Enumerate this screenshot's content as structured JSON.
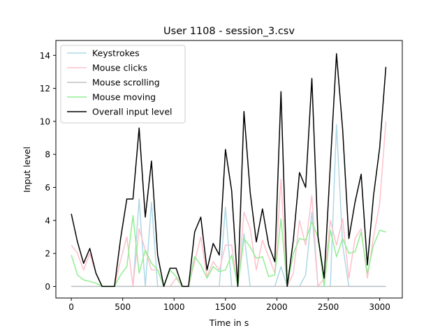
{
  "chart_data": {
    "type": "line",
    "title": "User 1108 - session_3.csv",
    "xlabel": "Time in s",
    "ylabel": "Input level",
    "xlim": [
      -150,
      3220
    ],
    "ylim": [
      -0.7,
      14.9
    ],
    "xticks": [
      0,
      500,
      1000,
      1500,
      2000,
      2500,
      3000
    ],
    "yticks": [
      0,
      2,
      4,
      6,
      8,
      10,
      12,
      14
    ],
    "grid": false,
    "legend_position": "top-left",
    "x": [
      0,
      60,
      120,
      180,
      240,
      300,
      360,
      420,
      480,
      540,
      600,
      660,
      720,
      780,
      840,
      900,
      960,
      1020,
      1080,
      1140,
      1200,
      1260,
      1320,
      1380,
      1440,
      1500,
      1560,
      1620,
      1680,
      1740,
      1800,
      1860,
      1920,
      1980,
      2040,
      2100,
      2160,
      2220,
      2280,
      2340,
      2400,
      2460,
      2520,
      2580,
      2640,
      2700,
      2760,
      2820,
      2880,
      2940,
      3000,
      3060
    ],
    "series": [
      {
        "name": "Keystrokes",
        "color": "#add8e6",
        "values": [
          0,
          0,
          0,
          0,
          0,
          0,
          0,
          0,
          0,
          0,
          0,
          5.3,
          0,
          5.1,
          0,
          0,
          0,
          0,
          0,
          0,
          0,
          0,
          0,
          0,
          0,
          4.8,
          0,
          0,
          3.2,
          0,
          0,
          0,
          0,
          0,
          1.2,
          0,
          0,
          0,
          0.7,
          4.5,
          0,
          0,
          0,
          9.8,
          2.5,
          0,
          0,
          0,
          0,
          0,
          0,
          0
        ]
      },
      {
        "name": "Mouse clicks",
        "color": "#ffc0cb",
        "values": [
          2.5,
          2.0,
          1.0,
          2.0,
          0.8,
          0,
          0,
          0,
          1.6,
          3.0,
          0,
          3.5,
          2.2,
          1.0,
          1.0,
          0,
          0,
          0.5,
          0,
          0,
          1.5,
          3.0,
          0.6,
          1.5,
          1.0,
          2.5,
          2.5,
          0,
          4.5,
          3.5,
          1.0,
          2.8,
          1.8,
          0.8,
          6.5,
          0,
          0.8,
          4.0,
          2.5,
          5.5,
          0,
          0.5,
          4.0,
          2.5,
          4.1,
          0.5,
          2.9,
          3.5,
          0.5,
          3.0,
          5.0,
          10.0
        ]
      },
      {
        "name": "Mouse scrolling",
        "color": "#c0c0c0",
        "values": [
          0,
          0,
          0,
          0,
          0,
          0,
          0,
          0,
          0,
          0,
          0,
          0,
          0,
          0,
          0,
          0,
          0,
          0,
          0,
          0,
          0,
          0,
          0,
          0,
          0,
          0,
          0,
          0,
          0,
          0,
          0,
          0,
          0,
          0,
          0,
          0,
          0,
          0,
          0,
          0,
          0,
          0,
          0,
          0,
          0,
          0,
          0,
          0,
          0,
          0,
          0,
          0
        ]
      },
      {
        "name": "Mouse moving",
        "color": "#90ee90",
        "values": [
          1.9,
          0.7,
          0.4,
          0.3,
          0.2,
          0,
          0,
          0,
          0.7,
          1.2,
          4.3,
          0.8,
          2.2,
          1.4,
          1.0,
          0,
          1.0,
          0.6,
          0,
          0,
          1.8,
          1.3,
          0.5,
          1.2,
          0.9,
          1.0,
          1.9,
          0,
          2.9,
          2.4,
          1.7,
          1.8,
          0.6,
          0.7,
          4.1,
          0,
          2.0,
          2.9,
          2.8,
          3.9,
          3.0,
          0,
          3.4,
          1.8,
          2.9,
          2.0,
          2.1,
          3.3,
          0.8,
          2.5,
          3.4,
          3.3
        ]
      },
      {
        "name": "Overall input level",
        "color": "#000000",
        "values": [
          4.4,
          2.7,
          1.4,
          2.3,
          0.8,
          0,
          0,
          0,
          2.9,
          5.3,
          5.3,
          9.6,
          4.2,
          7.6,
          1.9,
          0,
          1.1,
          1.1,
          0,
          0,
          3.3,
          4.2,
          1.0,
          2.6,
          1.9,
          8.3,
          5.8,
          0,
          10.6,
          5.7,
          2.7,
          4.7,
          2.5,
          1.5,
          11.8,
          0,
          2.8,
          6.9,
          6.0,
          12.6,
          3.0,
          0.5,
          7.4,
          14.1,
          9.5,
          2.9,
          5.1,
          6.8,
          1.3,
          5.5,
          8.4,
          13.3
        ]
      }
    ]
  }
}
